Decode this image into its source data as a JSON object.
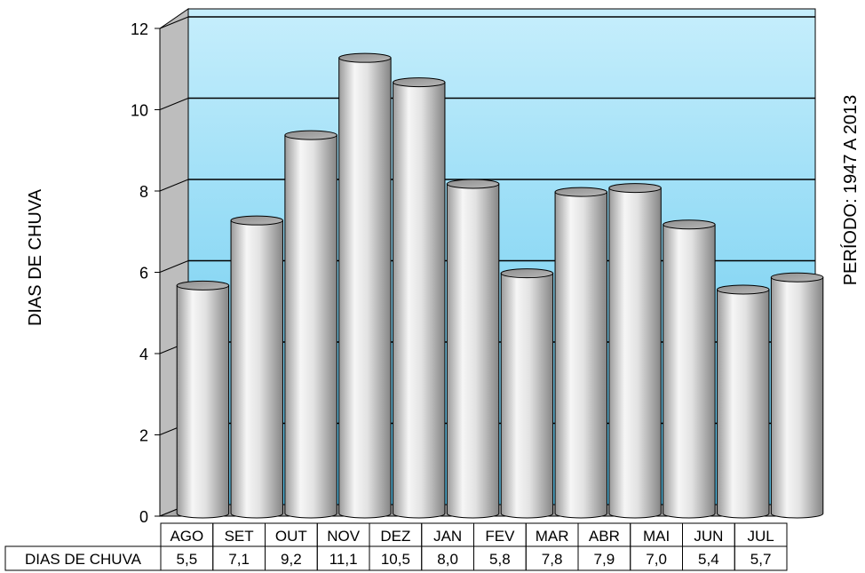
{
  "chart_data": {
    "type": "bar",
    "title": "",
    "ylabel": "DIAS DE CHUVA",
    "side_label": "PERÍODO: 1947 A 2013",
    "ylim": [
      0,
      12
    ],
    "yticks": [
      "0",
      "2",
      "4",
      "6",
      "8",
      "10",
      "12"
    ],
    "categories": [
      "AGO",
      "SET",
      "OUT",
      "NOV",
      "DEZ",
      "JAN",
      "FEV",
      "MAR",
      "ABR",
      "MAI",
      "JUN",
      "JUL"
    ],
    "series": [
      {
        "name": "DIAS DE CHUVA",
        "values": [
          5.5,
          7.1,
          9.2,
          11.1,
          10.5,
          8.0,
          5.8,
          7.8,
          7.9,
          7.0,
          5.4,
          5.7
        ],
        "value_labels": [
          "5,5",
          "7,1",
          "9,2",
          "11,1",
          "10,5",
          "8,0",
          "5,8",
          "7,8",
          "7,9",
          "7,0",
          "5,4",
          "5,7"
        ]
      }
    ],
    "grid": true,
    "legend": "table-below",
    "colors": {
      "wall_top": "#c6eefc",
      "wall_bottom": "#5cc6ee",
      "bar_light": "#f4f4f4",
      "bar_dark": "#8a8a8a"
    }
  }
}
